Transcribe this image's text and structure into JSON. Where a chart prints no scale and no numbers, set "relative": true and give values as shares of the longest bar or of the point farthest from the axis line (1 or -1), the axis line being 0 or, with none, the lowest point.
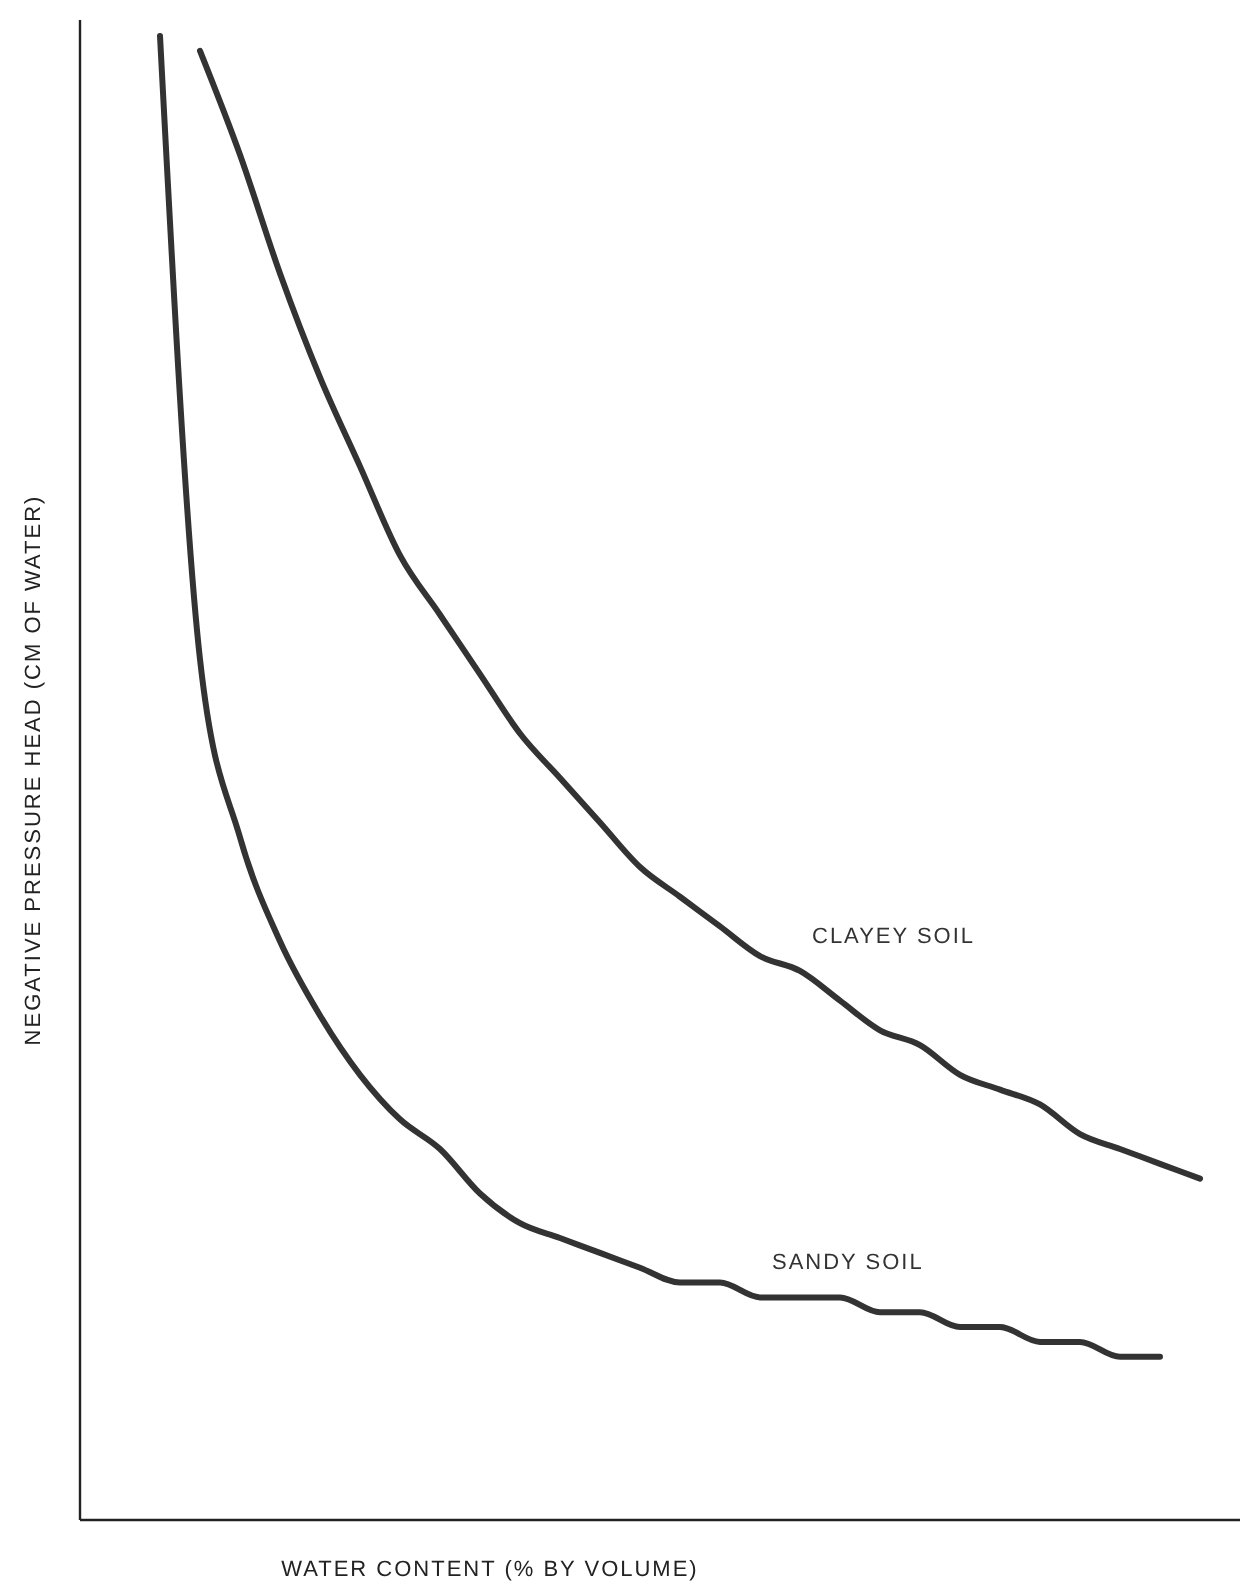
{
  "chart_data": {
    "type": "line",
    "relative": true,
    "xlabel": "WATER CONTENT  (% BY VOLUME)",
    "ylabel": "NEGATIVE PRESSURE HEAD  (CM OF WATER)",
    "categories": [
      null,
      null,
      null,
      null,
      null,
      null,
      null,
      null,
      null,
      null,
      null,
      null,
      null,
      null,
      null,
      null,
      null,
      null,
      null,
      null,
      null,
      null,
      null,
      null,
      null,
      null,
      null,
      null,
      null,
      null
    ],
    "series": [
      {
        "name": "CLAYEY SOIL",
        "color": "#333333",
        "values": [
          null,
          null,
          null,
          0.99,
          0.92,
          0.84,
          0.77,
          0.71,
          0.65,
          0.61,
          0.57,
          0.53,
          0.5,
          0.47,
          0.44,
          0.42,
          0.4,
          0.38,
          0.37,
          0.35,
          0.33,
          0.32,
          0.3,
          0.29,
          0.28,
          0.26,
          0.25,
          0.24,
          0.23,
          null
        ]
      },
      {
        "name": "SANDY SOIL",
        "color": "#333333",
        "values": [
          null,
          null,
          1.0,
          0.58,
          0.46,
          0.39,
          0.34,
          0.3,
          0.27,
          0.25,
          0.22,
          0.2,
          0.19,
          0.18,
          0.17,
          0.16,
          0.16,
          0.15,
          0.15,
          0.15,
          0.14,
          0.14,
          0.13,
          0.13,
          0.12,
          0.12,
          0.11,
          0.11,
          null,
          null
        ]
      }
    ]
  }
}
